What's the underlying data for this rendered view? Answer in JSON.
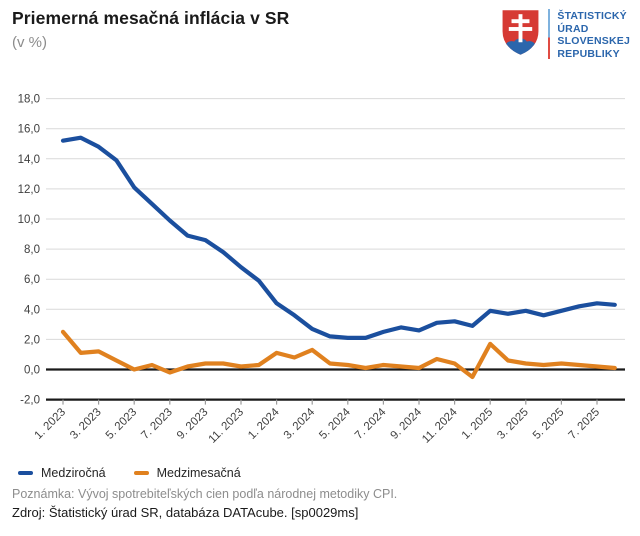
{
  "header": {
    "title": "Priemerná mesačná inflácia v SR",
    "subtitle": "(v %)"
  },
  "logo": {
    "lines": [
      "ŠTATISTICKÝ",
      "ÚRAD",
      "SLOVENSKEJ",
      "REPUBLIKY"
    ],
    "shield_colors": {
      "field": "#d63a34",
      "cross": "#ffffff",
      "hill": "#2b66ac"
    }
  },
  "chart_data": {
    "type": "line",
    "title": "Priemerná mesačná inflácia v SR (v %)",
    "x_tick_labels": [
      "1. 2023",
      "3. 2023",
      "5. 2023",
      "7. 2023",
      "9. 2023",
      "11. 2023",
      "1. 2024",
      "3. 2024",
      "5. 2024",
      "7. 2024",
      "9. 2024",
      "11. 2024",
      "1. 2025",
      "3. 2025",
      "5. 2025",
      "7. 2025"
    ],
    "x_months_total": 32,
    "y_tick_labels": [
      "18,0",
      "16,0",
      "14,0",
      "12,0",
      "10,0",
      "8,0",
      "6,0",
      "4,0",
      "2,0",
      "0,0",
      "-2,0"
    ],
    "ylim": [
      -2,
      18
    ],
    "y_step": 2,
    "grid": true,
    "zero_line": true,
    "legend_position": "bottom-left",
    "series": [
      {
        "name": "Medziročná",
        "color": "#1b4f9e",
        "values": [
          15.2,
          15.4,
          14.8,
          13.9,
          12.1,
          11.0,
          9.9,
          8.9,
          8.6,
          7.8,
          6.8,
          5.9,
          4.4,
          3.6,
          2.7,
          2.2,
          2.1,
          2.1,
          2.5,
          2.8,
          2.6,
          3.1,
          3.2,
          2.9,
          3.9,
          3.7,
          3.9,
          3.6,
          3.9,
          4.2,
          4.4,
          4.3
        ]
      },
      {
        "name": "Medzimesačná",
        "color": "#e0811f",
        "values": [
          2.5,
          1.1,
          1.2,
          0.6,
          0.0,
          0.3,
          -0.2,
          0.2,
          0.4,
          0.4,
          0.2,
          0.3,
          1.1,
          0.8,
          1.3,
          0.4,
          0.3,
          0.1,
          0.3,
          0.2,
          0.1,
          0.7,
          0.4,
          -0.5,
          1.7,
          0.6,
          0.4,
          0.3,
          0.4,
          0.3,
          0.2,
          0.1
        ]
      }
    ]
  },
  "footer": {
    "note": "Poznámka: Vývoj spotrebiteľských cien podľa národnej metodiky CPI.",
    "source": "Zdroj: Štatistický úrad SR, databáza DATAcube. [sp0029ms]"
  }
}
